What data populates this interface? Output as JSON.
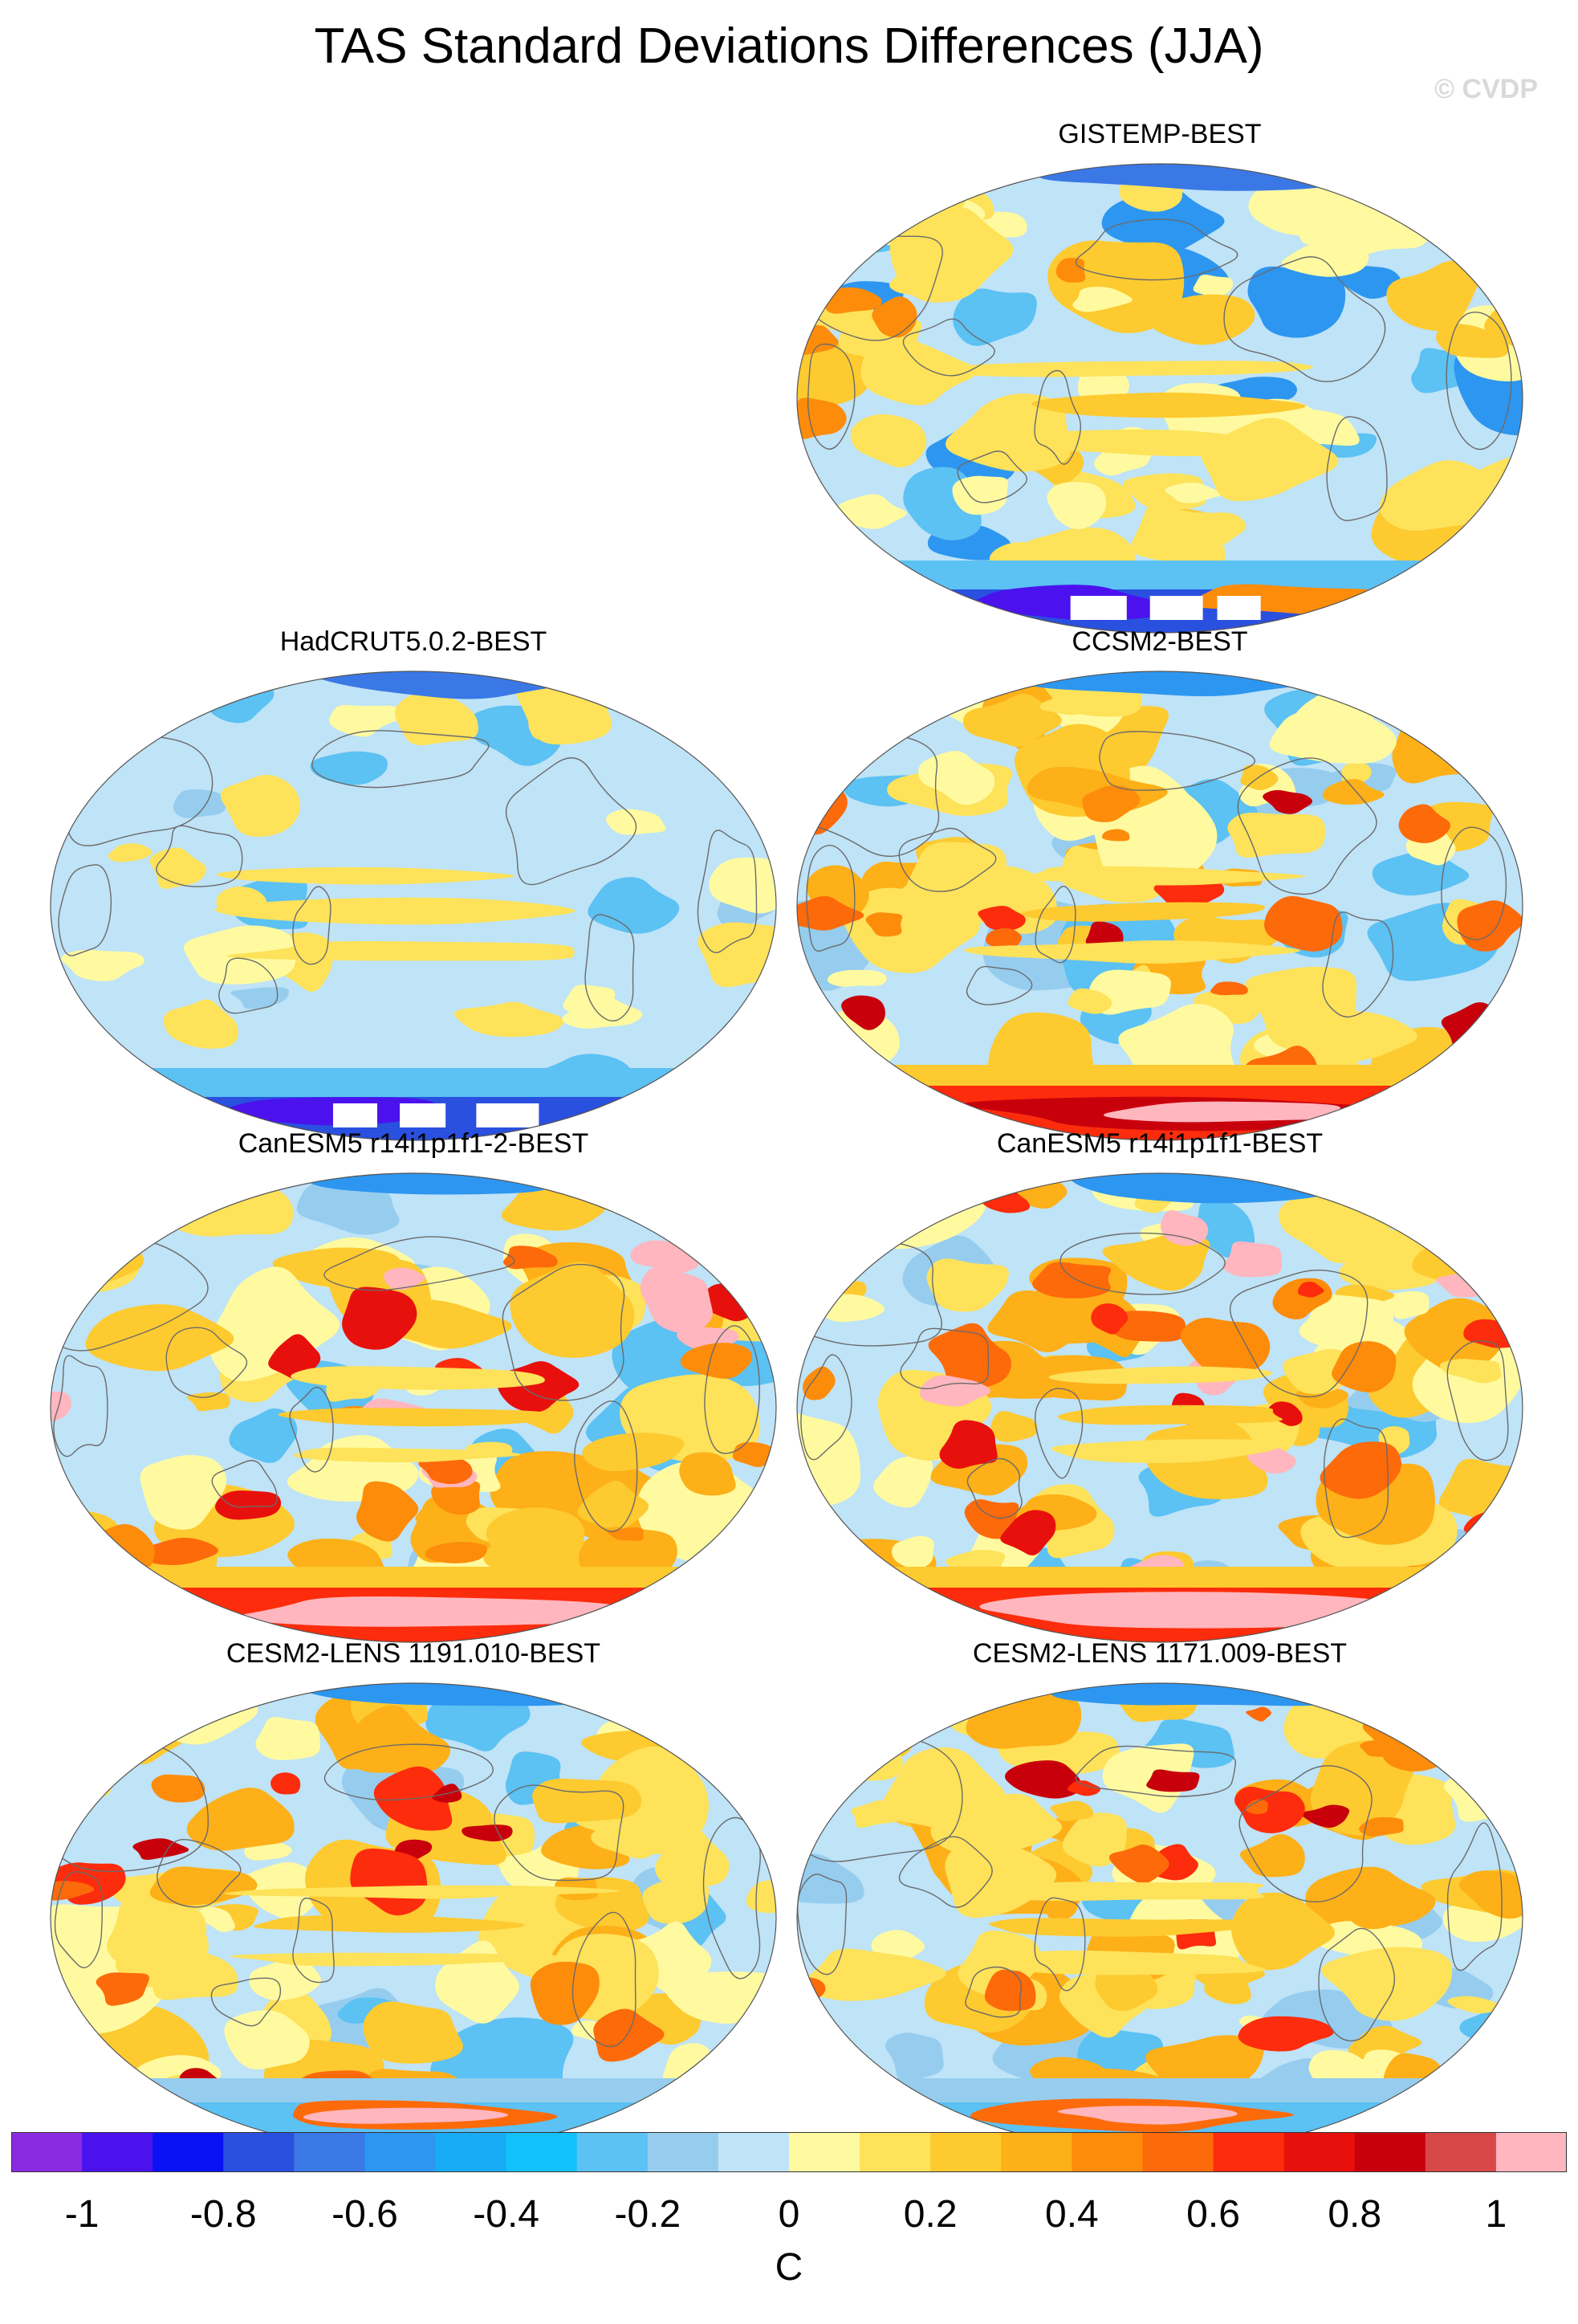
{
  "figure": {
    "title": "TAS Standard Deviations Differences (JJA)",
    "watermark": "© CVDP",
    "units": "C"
  },
  "panels": [
    {
      "title": "GISTEMP-BEST",
      "theme": "cool"
    },
    {
      "title": "HadCRUT5.0.2-BEST",
      "theme": "coolest"
    },
    {
      "title": "CCSM2-BEST",
      "theme": "warm"
    },
    {
      "title": "CanESM5 r14i1p1f1-2-BEST",
      "theme": "hot"
    },
    {
      "title": "CanESM5 r14i1p1f1-BEST",
      "theme": "hot"
    },
    {
      "title": "CESM2-LENS 1191.010-BEST",
      "theme": "mild"
    },
    {
      "title": "CESM2-LENS 1171.009-BEST",
      "theme": "mild"
    }
  ],
  "colorbar": {
    "colors": [
      "#8a2be2",
      "#4b12ee",
      "#0a12f5",
      "#2a50e0",
      "#3a78e6",
      "#2d96f0",
      "#18acf6",
      "#12c2fb",
      "#5cc1f3",
      "#96cdee",
      "#bfe3f7",
      "#fffaa0",
      "#fde25a",
      "#fdca30",
      "#fdb018",
      "#fd8c0a",
      "#fd6a0a",
      "#fd2c0c",
      "#e8100c",
      "#c8000c",
      "#d84848",
      "#ffb6be"
    ],
    "tick_labels": [
      "-1",
      "-0.8",
      "-0.6",
      "-0.4",
      "-0.2",
      "0",
      "0.2",
      "0.4",
      "0.6",
      "0.8",
      "1"
    ],
    "unit_label": "C"
  }
}
